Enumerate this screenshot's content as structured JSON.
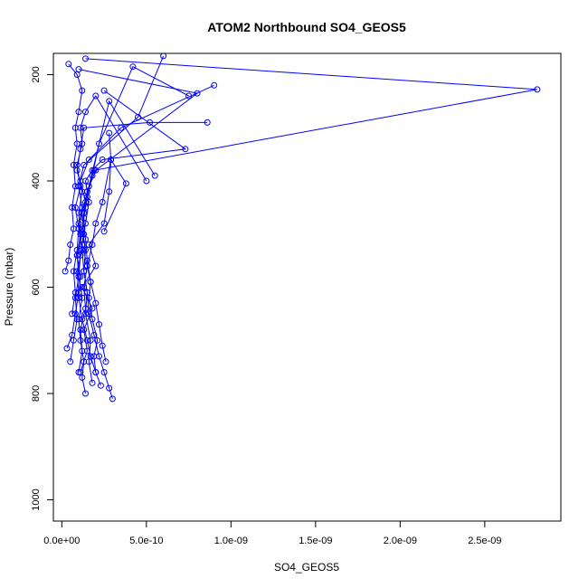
{
  "chart_data": {
    "type": "line",
    "title": "ATOM2 Northbound SO4_GEOS5",
    "xlabel": "SO4_GEOS5",
    "ylabel": "Pressure (mbar)",
    "xlim": [
      -5e-11,
      2.95e-09
    ],
    "ylim": [
      1040,
      160
    ],
    "y_reversed": true,
    "x_ticks": [
      0,
      5e-10,
      1e-09,
      1.5e-09,
      2e-09,
      2.5e-09
    ],
    "x_tick_labels": [
      "0.0e+00",
      "5.0e-10",
      "1.0e-09",
      "1.5e-09",
      "2.0e-09",
      "2.5e-09"
    ],
    "y_ticks": [
      200,
      400,
      600,
      800,
      1000
    ],
    "y_tick_labels": [
      "200",
      "400",
      "600",
      "800",
      "1000"
    ],
    "grid": false,
    "markers": "open-circle",
    "colors": {
      "series": "#0000ff",
      "axis": "#000000",
      "background": "#ffffff"
    },
    "series": [
      {
        "x": [
          1.1e-10,
          1.5e-10,
          1.3e-10,
          1.8e-10,
          1.2e-10,
          2e-10,
          1.6e-10,
          2.5e-10,
          2.8e-10,
          2.9e-10,
          2.8e-10
        ],
        "y": [
          760,
          720,
          680,
          640,
          600,
          560,
          520,
          480,
          420,
          360,
          310
        ]
      },
      {
        "x": [
          3e-11,
          6e-11,
          8e-11,
          1e-10,
          9e-11,
          1.2e-10,
          1e-10,
          1.4e-10,
          1.1e-10,
          1.6e-10,
          3.5e-10,
          9e-10
        ],
        "y": [
          715,
          690,
          650,
          610,
          570,
          530,
          480,
          440,
          400,
          360,
          300,
          220
        ]
      },
      {
        "x": [
          2.3e-10,
          2e-10,
          1.7e-10,
          1.5e-10,
          1.2e-10,
          1e-10,
          1.1e-10,
          9e-11,
          1.2e-10,
          1.3e-10,
          1.5e-10,
          1.9e-10,
          2.81e-09,
          1.4e-10
        ],
        "y": [
          785,
          760,
          730,
          700,
          660,
          620,
          580,
          540,
          500,
          460,
          420,
          380,
          228,
          170
        ]
      },
      {
        "x": [
          1e-10,
          1.2e-10,
          1.1e-10,
          1.4e-10,
          1.3e-10,
          1.5e-10,
          1.2e-10,
          1.4e-10,
          1.6e-10,
          1.4e-10,
          1.8e-10,
          2.4e-10,
          7.3e-10,
          2.5e-10
        ],
        "y": [
          760,
          720,
          680,
          640,
          600,
          560,
          520,
          480,
          440,
          400,
          380,
          360,
          340,
          230
        ]
      },
      {
        "x": [
          1.4e-10,
          1.2e-10,
          1.3e-10,
          1.1e-10,
          1e-10,
          1.2e-10,
          1e-10,
          1.1e-10,
          1.3e-10,
          1.2e-10,
          1.5e-10,
          2e-10,
          8e-10,
          1e-10
        ],
        "y": [
          800,
          770,
          740,
          700,
          660,
          620,
          580,
          540,
          500,
          460,
          420,
          380,
          235,
          190
        ]
      },
      {
        "x": [
          3e-10,
          2.8e-10,
          2.5e-10,
          2.2e-10,
          1.9e-10,
          1.6e-10,
          1.5e-10,
          1.3e-10,
          1.2e-10,
          1e-10,
          1.2e-10,
          1e-10,
          1.3e-10,
          4.5e-10,
          6e-10
        ],
        "y": [
          810,
          790,
          760,
          730,
          690,
          650,
          610,
          570,
          530,
          490,
          450,
          410,
          370,
          280,
          165
        ]
      },
      {
        "x": [
          5e-11,
          7e-11,
          9e-11,
          8e-11,
          1e-10,
          9e-11,
          1.1e-10,
          1e-10,
          1.2e-10,
          9e-11,
          1.1e-10,
          1.3e-10,
          5.2e-10,
          8.6e-10
        ],
        "y": [
          740,
          700,
          660,
          620,
          580,
          540,
          500,
          460,
          420,
          380,
          340,
          300,
          290,
          290
        ]
      },
      {
        "x": [
          1.8e-10,
          1.6e-10,
          1.7e-10,
          1.4e-10,
          1.5e-10,
          1.3e-10,
          1.4e-10,
          1.2e-10,
          1.4e-10,
          1.6e-10,
          2.8e-10,
          5.5e-10
        ],
        "y": [
          780,
          740,
          700,
          650,
          610,
          570,
          530,
          490,
          450,
          410,
          250,
          390
        ]
      },
      {
        "x": [
          2.6e-10,
          2.4e-10,
          2.2e-10,
          2e-10,
          1.7e-10,
          1.5e-10,
          1.4e-10,
          1.3e-10,
          1.5e-10,
          1.8e-10,
          2.2e-10,
          4.2e-10,
          7.5e-10
        ],
        "y": [
          740,
          710,
          670,
          630,
          590,
          550,
          510,
          470,
          430,
          390,
          330,
          185,
          240
        ]
      },
      {
        "x": [
          2e-11,
          4e-11,
          5e-11,
          7e-11,
          6e-11,
          8e-11,
          7e-11,
          9e-11,
          8e-11,
          1e-10,
          1.2e-10,
          9e-11,
          4e-11
        ],
        "y": [
          570,
          550,
          520,
          490,
          450,
          410,
          370,
          330,
          300,
          270,
          230,
          200,
          180
        ]
      },
      {
        "x": [
          2e-10,
          1.9e-10,
          2.1e-10,
          1.8e-10,
          1.6e-10,
          1.7e-10,
          1.5e-10,
          1.8e-10,
          2e-10,
          2.4e-10,
          2.9e-10,
          3.8e-10,
          2.5e-10
        ],
        "y": [
          760,
          730,
          700,
          660,
          620,
          590,
          560,
          520,
          480,
          440,
          360,
          405,
          495
        ]
      },
      {
        "x": [
          6e-11,
          8e-11,
          7e-11,
          9e-11,
          1e-10,
          8e-11,
          1.1e-10,
          9e-11,
          1.2e-10,
          1.1e-10,
          1.4e-10,
          2e-10,
          5e-10
        ],
        "y": [
          650,
          610,
          570,
          530,
          490,
          450,
          410,
          370,
          330,
          300,
          270,
          240,
          400
        ]
      }
    ]
  }
}
